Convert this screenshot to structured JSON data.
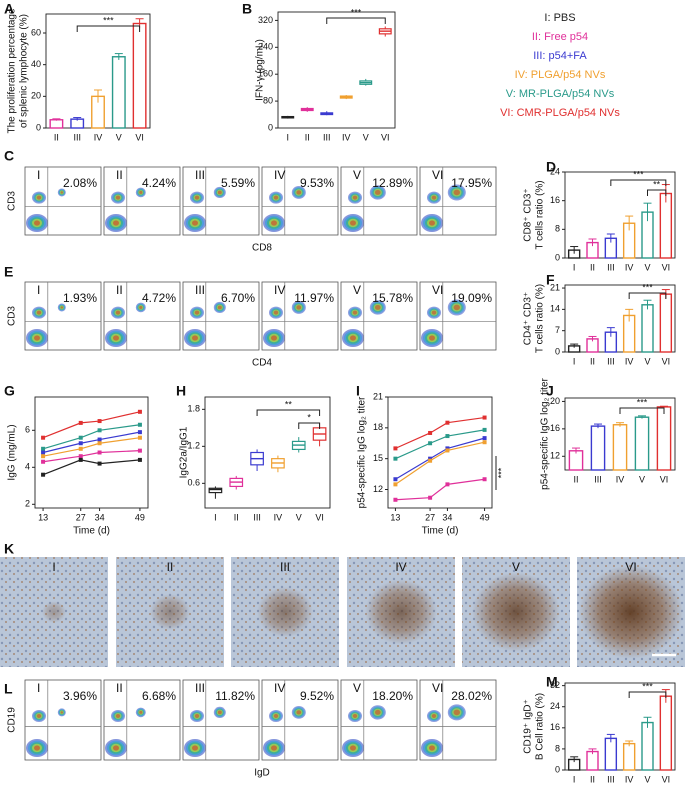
{
  "panel_labels": [
    "A",
    "B",
    "C",
    "D",
    "E",
    "F",
    "G",
    "H",
    "I",
    "J",
    "K",
    "L",
    "M"
  ],
  "legend": {
    "items": [
      "I: PBS",
      "II: Free p54",
      "III: p54+FA",
      "IV: PLGA/p54 NVs",
      "V: MR-PLGA/p54 NVs",
      "VI: CMR-PLGA/p54 NVs"
    ],
    "colors": [
      "#222222",
      "#e0309a",
      "#3a3ad0",
      "#f0a030",
      "#2a9a8a",
      "#e03030"
    ]
  },
  "flow": [
    {
      "ylabel": "CD3",
      "xlabel": "CD8",
      "groups": [
        "I",
        "II",
        "III",
        "IV",
        "V",
        "VI"
      ],
      "percents": [
        "2.08%",
        "4.24%",
        "5.59%",
        "9.53%",
        "12.89%",
        "17.95%"
      ]
    },
    {
      "ylabel": "CD3",
      "xlabel": "CD4",
      "groups": [
        "I",
        "II",
        "III",
        "IV",
        "V",
        "VI"
      ],
      "percents": [
        "1.93%",
        "4.72%",
        "6.70%",
        "11.97%",
        "15.78%",
        "19.09%"
      ]
    },
    {
      "ylabel": "CD19",
      "xlabel": "IgD",
      "groups": [
        "I",
        "II",
        "III",
        "IV",
        "V",
        "VI"
      ],
      "percents": [
        "3.96%",
        "6.68%",
        "11.82%",
        "9.52%",
        "18.20%",
        "28.02%"
      ]
    }
  ],
  "micrographs": {
    "groups": [
      "I",
      "II",
      "III",
      "IV",
      "V",
      "VI"
    ]
  },
  "chart_data": [
    {
      "type": "bar",
      "ylabel": [
        "The proliferation percentage",
        "of splenic lymphocyte (%)"
      ],
      "categories": [
        "II",
        "III",
        "IV",
        "V",
        "VI"
      ],
      "values": [
        5.2,
        5.6,
        20,
        45,
        66
      ],
      "errors": [
        0.6,
        1,
        4,
        2,
        3
      ],
      "colors": [
        "#e0309a",
        "#3a3ad0",
        "#f0a030",
        "#2a9a8a",
        "#e03030"
      ],
      "ylim": [
        0,
        72
      ],
      "yticks": [
        0,
        20,
        40,
        60
      ],
      "annotations": [
        "***"
      ]
    },
    {
      "type": "box",
      "ylabel": [
        "IFN-γ (pg/mL)"
      ],
      "categories": [
        "I",
        "II",
        "III",
        "IV",
        "V",
        "VI"
      ],
      "min": [
        28,
        48,
        38,
        86,
        126,
        272
      ],
      "q1": [
        30,
        52,
        40,
        89,
        130,
        280
      ],
      "median": [
        32,
        55,
        42,
        92,
        135,
        288
      ],
      "q3": [
        34,
        58,
        45,
        95,
        140,
        295
      ],
      "max": [
        36,
        62,
        50,
        98,
        146,
        302
      ],
      "colors": [
        "#222222",
        "#e0309a",
        "#3a3ad0",
        "#f0a030",
        "#2a9a8a",
        "#e03030"
      ],
      "ylim": [
        0,
        345
      ],
      "yticks": [
        0,
        80,
        160,
        240,
        320
      ],
      "annotations": [
        "***"
      ]
    },
    {
      "type": "bar",
      "ylabel": [
        "CD8⁺ CD3⁺",
        "T cells ratio (%)"
      ],
      "categories": [
        "I",
        "II",
        "III",
        "IV",
        "V",
        "VI"
      ],
      "values": [
        2.2,
        4.3,
        5.5,
        9.7,
        12.8,
        18
      ],
      "errors": [
        1,
        1,
        1.2,
        2,
        2.5,
        2.5
      ],
      "colors": [
        "#222222",
        "#e0309a",
        "#3a3ad0",
        "#f0a030",
        "#2a9a8a",
        "#e03030"
      ],
      "ylim": [
        0,
        24
      ],
      "yticks": [
        0,
        8,
        16,
        24
      ],
      "annotations": [
        "***",
        "**"
      ]
    },
    {
      "type": "bar",
      "ylabel": [
        "CD4⁺ CD3⁺",
        "T cells ratio (%)"
      ],
      "categories": [
        "I",
        "II",
        "III",
        "IV",
        "V",
        "VI"
      ],
      "values": [
        2,
        4.3,
        6.5,
        12,
        15.5,
        19
      ],
      "errors": [
        0.6,
        0.8,
        1.5,
        2,
        1.5,
        1.5
      ],
      "colors": [
        "#222222",
        "#e0309a",
        "#3a3ad0",
        "#f0a030",
        "#2a9a8a",
        "#e03030"
      ],
      "ylim": [
        0,
        22
      ],
      "yticks": [
        0,
        7,
        14,
        21
      ],
      "annotations": [
        "***"
      ]
    },
    {
      "type": "line",
      "ylabel": [
        "IgG (mg/mL)"
      ],
      "xlabel": "Time (d)",
      "x": [
        13,
        27,
        34,
        49
      ],
      "xlim": [
        10,
        52
      ],
      "xticks": [
        13,
        27,
        34,
        49
      ],
      "ylim": [
        1.8,
        7.8
      ],
      "yticks": [
        2,
        4,
        6
      ],
      "series": [
        {
          "color": "#e03030",
          "values": [
            5.6,
            6.4,
            6.5,
            7.0
          ]
        },
        {
          "color": "#2a9a8a",
          "values": [
            5.0,
            5.6,
            6.0,
            6.3
          ]
        },
        {
          "color": "#3a3ad0",
          "values": [
            4.8,
            5.3,
            5.5,
            5.9
          ]
        },
        {
          "color": "#f0a030",
          "values": [
            4.6,
            5.0,
            5.3,
            5.6
          ]
        },
        {
          "color": "#e0309a",
          "values": [
            4.3,
            4.6,
            4.8,
            4.9
          ]
        },
        {
          "color": "#222222",
          "values": [
            3.6,
            4.4,
            4.2,
            4.4
          ]
        }
      ]
    },
    {
      "type": "box",
      "ylabel": [
        "IgG2a/IgG1"
      ],
      "categories": [
        "I",
        "II",
        "III",
        "IV",
        "V",
        "VI"
      ],
      "min": [
        0.35,
        0.5,
        0.8,
        0.78,
        1.1,
        1.2
      ],
      "q1": [
        0.45,
        0.55,
        0.9,
        0.85,
        1.15,
        1.3
      ],
      "median": [
        0.5,
        0.62,
        1.0,
        0.93,
        1.22,
        1.4
      ],
      "q3": [
        0.52,
        0.68,
        1.1,
        1.0,
        1.28,
        1.5
      ],
      "max": [
        0.55,
        0.72,
        1.15,
        1.05,
        1.35,
        1.58
      ],
      "colors": [
        "#222222",
        "#e0309a",
        "#3a3ad0",
        "#f0a030",
        "#2a9a8a",
        "#e03030"
      ],
      "ylim": [
        0.2,
        2.0
      ],
      "yticks": [
        0.6,
        1.2,
        1.8
      ],
      "annotations": [
        "**",
        "*"
      ]
    },
    {
      "type": "line",
      "ylabel": [
        "p54-specific IgG log₂ titer"
      ],
      "xlabel": "Time (d)",
      "x": [
        13,
        27,
        34,
        49
      ],
      "xlim": [
        10,
        52
      ],
      "xticks": [
        13,
        27,
        34,
        49
      ],
      "ylim": [
        10.2,
        21
      ],
      "yticks": [
        12,
        15,
        18,
        21
      ],
      "series": [
        {
          "color": "#e03030",
          "values": [
            16,
            17.5,
            18.5,
            19
          ]
        },
        {
          "color": "#2a9a8a",
          "values": [
            15,
            16.5,
            17.2,
            17.8
          ]
        },
        {
          "color": "#3a3ad0",
          "values": [
            13,
            15,
            16,
            17
          ]
        },
        {
          "color": "#f0a030",
          "values": [
            12.5,
            14.8,
            15.8,
            16.6
          ]
        },
        {
          "color": "#e0309a",
          "values": [
            11,
            11.2,
            12.5,
            13
          ]
        }
      ],
      "annotations": [
        "***"
      ]
    },
    {
      "type": "bar",
      "ylabel": [
        "p54-specific IgG log₂ titer"
      ],
      "categories": [
        "II",
        "III",
        "IV",
        "V",
        "VI"
      ],
      "values": [
        12.8,
        16.4,
        16.6,
        17.7,
        19.2
      ],
      "errors": [
        0.4,
        0.3,
        0.3,
        0.2,
        0.1
      ],
      "colors": [
        "#e0309a",
        "#3a3ad0",
        "#f0a030",
        "#2a9a8a",
        "#e03030"
      ],
      "ylim": [
        10,
        20.5
      ],
      "yticks": [
        12,
        16,
        20
      ],
      "annotations": [
        "***"
      ]
    },
    {
      "type": "bar",
      "ylabel": [
        "CD19⁺ IgD⁺",
        "B Cell ratio (%)"
      ],
      "categories": [
        "I",
        "II",
        "III",
        "IV",
        "V",
        "VI"
      ],
      "values": [
        4,
        7,
        12,
        10,
        18,
        28
      ],
      "errors": [
        1,
        1,
        1.5,
        1,
        2,
        2.5
      ],
      "colors": [
        "#222222",
        "#e0309a",
        "#3a3ad0",
        "#f0a030",
        "#2a9a8a",
        "#e03030"
      ],
      "ylim": [
        0,
        33
      ],
      "yticks": [
        0,
        8,
        16,
        24,
        32
      ],
      "annotations": [
        "***"
      ]
    }
  ]
}
